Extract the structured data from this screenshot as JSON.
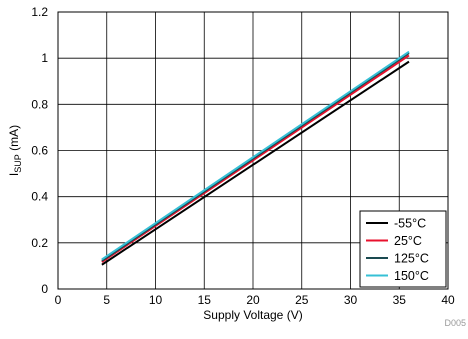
{
  "chart_data": {
    "type": "line",
    "xlabel": "Supply Voltage (V)",
    "ylabel": {
      "main": "I",
      "sub": "SUP",
      "unit": " (mA)"
    },
    "xlim": [
      0,
      40
    ],
    "ylim": [
      0,
      1.2
    ],
    "x_ticks": [
      "0",
      "5",
      "10",
      "15",
      "20",
      "25",
      "30",
      "35",
      "40"
    ],
    "y_ticks": [
      "0",
      "0.2",
      "0.4",
      "0.6",
      "0.8",
      "1",
      "1.2"
    ],
    "grid": true,
    "legend_position": "bottom-right",
    "series": [
      {
        "name": "-55°C",
        "color": "#000000",
        "x": [
          4.5,
          36
        ],
        "y": [
          0.105,
          0.985
        ]
      },
      {
        "name": "25°C",
        "color": "#e8112d",
        "x": [
          4.5,
          36
        ],
        "y": [
          0.117,
          1.012
        ]
      },
      {
        "name": "125°C",
        "color": "#1a4a50",
        "x": [
          4.5,
          36
        ],
        "y": [
          0.122,
          1.022
        ]
      },
      {
        "name": "150°C",
        "color": "#36c0d6",
        "x": [
          4.5,
          36
        ],
        "y": [
          0.128,
          1.028
        ]
      }
    ],
    "figure_id": "D005"
  }
}
